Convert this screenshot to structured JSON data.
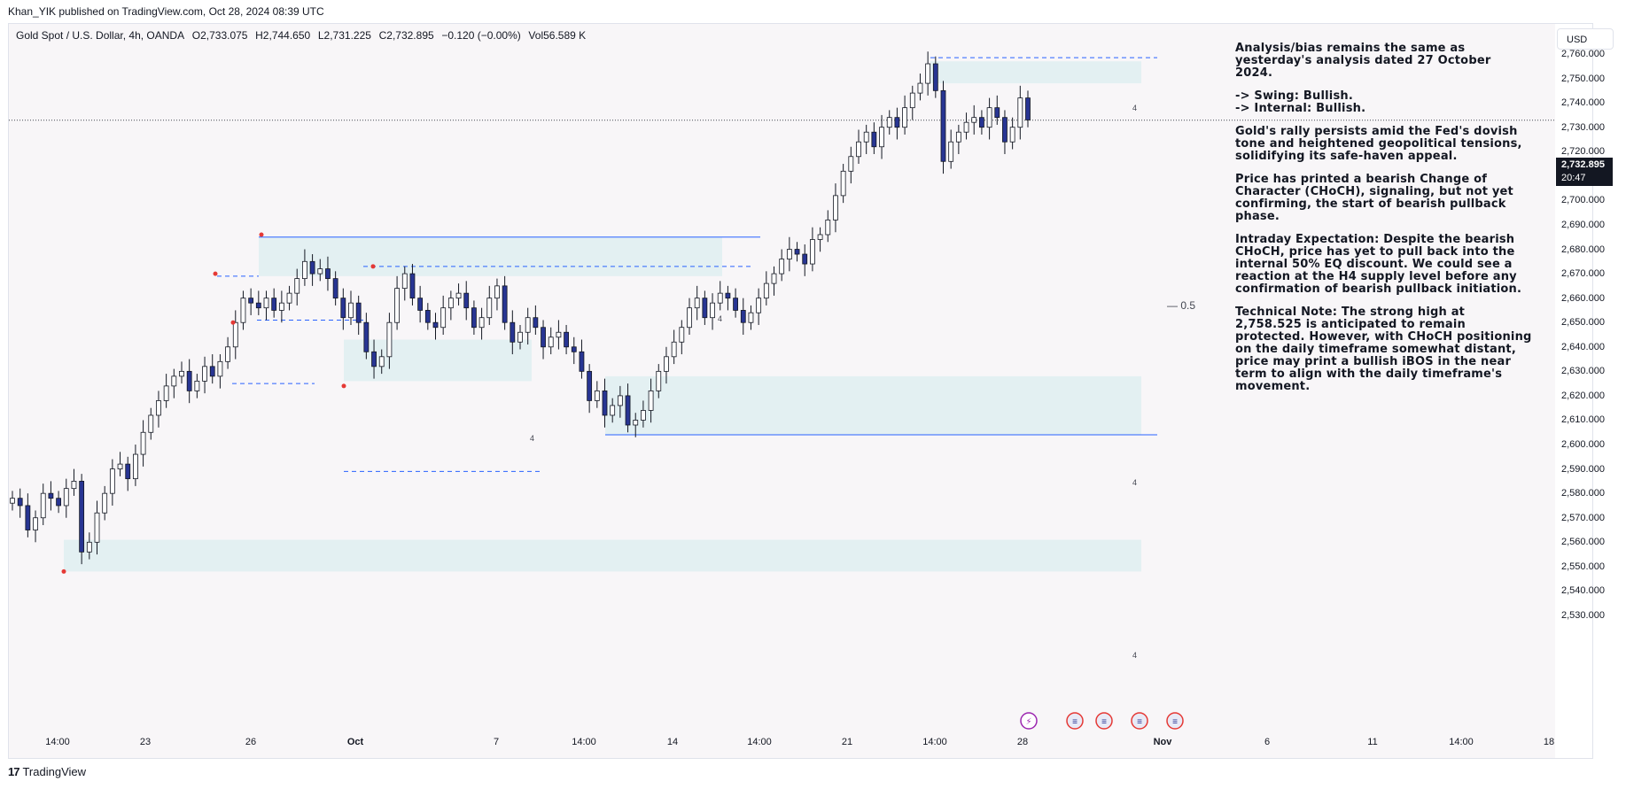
{
  "topbar": {
    "text": "Khan_YIK published on TradingView.com, Oct 28, 2024 08:39 UTC"
  },
  "legend": {
    "symbol": "Gold Spot / U.S. Dollar, 4h, OANDA",
    "open": "O2,733.075",
    "high": "H2,744.650",
    "low": "L2,731.225",
    "close": "C2,732.895",
    "change": "−0.120 (−0.00%)",
    "volume": "Vol56.589 K"
  },
  "currency_button": "USD",
  "last_price": {
    "price": "2,732.895",
    "countdown": "20:47"
  },
  "half_level_label": "0.5",
  "zone_labels": [
    "4",
    "4",
    "4",
    "4",
    "4"
  ],
  "analysis": {
    "p1": "Analysis/bias remains the same as yesterday's analysis dated 27 October 2024.",
    "p2a": "-> Swing:  Bullish.",
    "p2b": "-> Internal:  Bullish.",
    "p3": "Gold's rally persists amid the Fed's dovish tone and heightened geopolitical tensions, solidifying its safe-haven appeal.",
    "p4": "Price has printed a bearish Change of Character (CHoCH), signaling, but not yet confirming, the start of bearish pullback phase.",
    "p5": "Intraday Expectation: Despite the bearish CHoCH, price has yet to pull back into the internal 50% EQ discount. We could see a reaction at the H4 supply level before any confirmation of bearish pullback initiation.",
    "p6": "Technical Note: The strong high at 2,758.525 is anticipated to remain protected. However, with CHoCH positioning on the daily timeframe somewhat distant, price may print a bullish iBOS in the near term to align with the daily timeframe's movement."
  },
  "footer": {
    "logo": "17",
    "brand": "TradingView"
  },
  "colors": {
    "bull": "#ffffff",
    "bear": "#283593",
    "zone": "#e3f0f2",
    "line_blue": "#2962ff",
    "swing_point": "#e53935"
  },
  "chart_data": {
    "type": "candlestick",
    "timeframe": "4h",
    "symbol": "XAUUSD",
    "y_axis": {
      "ticks": [
        "2,760.000",
        "2,750.000",
        "2,740.000",
        "2,730.000",
        "2,720.000",
        "2,710.000",
        "2,700.000",
        "2,690.000",
        "2,680.000",
        "2,670.000",
        "2,660.000",
        "2,650.000",
        "2,640.000",
        "2,630.000",
        "2,620.000",
        "2,610.000",
        "2,600.000",
        "2,590.000",
        "2,580.000",
        "2,570.000",
        "2,560.000",
        "2,550.000",
        "2,540.000",
        "2,530.000"
      ],
      "range": [
        2525,
        2770
      ]
    },
    "x_axis": {
      "ticks": [
        {
          "label": "14:00",
          "bold": false
        },
        {
          "label": "23",
          "bold": false
        },
        {
          "label": "26",
          "bold": false
        },
        {
          "label": "Oct",
          "bold": true
        },
        {
          "label": "7",
          "bold": false
        },
        {
          "label": "14:00",
          "bold": false
        },
        {
          "label": "14",
          "bold": false
        },
        {
          "label": "14:00",
          "bold": false
        },
        {
          "label": "21",
          "bold": false
        },
        {
          "label": "14:00",
          "bold": false
        },
        {
          "label": "28",
          "bold": false
        },
        {
          "label": "Nov",
          "bold": true
        },
        {
          "label": "6",
          "bold": false
        },
        {
          "label": "11",
          "bold": false
        },
        {
          "label": "14:00",
          "bold": false
        },
        {
          "label": "18",
          "bold": false
        }
      ]
    },
    "ohlc_close_path": [
      2578,
      2575,
      2565,
      2570,
      2580,
      2578,
      2575,
      2582,
      2585,
      2556,
      2560,
      2572,
      2580,
      2590,
      2592,
      2586,
      2596,
      2605,
      2612,
      2618,
      2624,
      2628,
      2630,
      2622,
      2626,
      2632,
      2628,
      2634,
      2640,
      2650,
      2660,
      2658,
      2656,
      2660,
      2655,
      2658,
      2662,
      2668,
      2675,
      2670,
      2672,
      2668,
      2660,
      2652,
      2658,
      2650,
      2638,
      2632,
      2636,
      2650,
      2664,
      2670,
      2660,
      2655,
      2650,
      2648,
      2656,
      2660,
      2662,
      2656,
      2648,
      2652,
      2660,
      2665,
      2650,
      2642,
      2646,
      2652,
      2648,
      2640,
      2644,
      2646,
      2640,
      2638,
      2630,
      2618,
      2622,
      2612,
      2616,
      2620,
      2608,
      2610,
      2614,
      2622,
      2630,
      2636,
      2642,
      2648,
      2656,
      2660,
      2652,
      2658,
      2662,
      2660,
      2655,
      2650,
      2654,
      2660,
      2666,
      2670,
      2676,
      2680,
      2678,
      2674,
      2684,
      2686,
      2692,
      2702,
      2712,
      2718,
      2724,
      2728,
      2722,
      2730,
      2734,
      2730,
      2738,
      2744,
      2748,
      2756,
      2745,
      2716,
      2724,
      2728,
      2732,
      2734,
      2730,
      2738,
      2734,
      2724,
      2730,
      2742,
      2733
    ],
    "zones": [
      {
        "kind": "supply",
        "top": 2757,
        "bottom": 2748,
        "label": "4"
      },
      {
        "kind": "supply",
        "top": 2685,
        "bottom": 2669,
        "label": "4"
      },
      {
        "kind": "demand",
        "top": 2628,
        "bottom": 2604,
        "label": "4"
      },
      {
        "kind": "demand",
        "top": 2643,
        "bottom": 2626,
        "label": "4"
      },
      {
        "kind": "demand",
        "top": 2561,
        "bottom": 2548,
        "label": "4"
      }
    ],
    "levels": [
      {
        "price": 2758.525,
        "style": "dashed",
        "label": "strong high"
      },
      {
        "price": 2685,
        "style": "solid"
      },
      {
        "price": 2604,
        "style": "solid"
      },
      {
        "price": 2673,
        "style": "dashed"
      },
      {
        "price": 2669,
        "style": "dashed"
      },
      {
        "price": 2651,
        "style": "dashed"
      },
      {
        "price": 2625,
        "style": "dashed"
      },
      {
        "price": 2589,
        "style": "dashed"
      },
      {
        "price": 2680,
        "label": "0.5"
      }
    ],
    "swing_points": [
      2686,
      2670,
      2650,
      2624,
      2673,
      2548
    ],
    "last_price": 2732.895,
    "event_icons": [
      "lightning-icon",
      "us-flag-icon",
      "us-flag-icon",
      "us-flag-icon",
      "us-flag-icon"
    ]
  }
}
